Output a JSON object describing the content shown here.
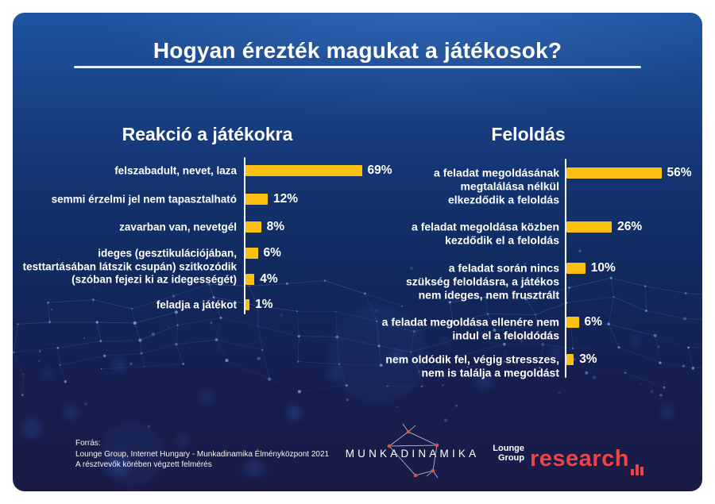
{
  "title": "Hogyan érezték magukat a játékosok?",
  "colors": {
    "background_top": "#1F54A0",
    "background_bottom": "#1A1B45",
    "bar": "#FCC013",
    "text": "#FFFFFF",
    "accent_red": "#EF4348"
  },
  "chart_data": [
    {
      "type": "bar",
      "orientation": "horizontal",
      "title": "Reakció a játékokra",
      "unit": "percent",
      "xlim": [
        0,
        100
      ],
      "grid": false,
      "legend": false,
      "categories": [
        "felszabadult, nevet, laza",
        "semmi érzelmi jel nem tapasztalható",
        "zavarban van, nevetgél",
        "ideges (gesztikulációjában,\ntesttartásában látszik csupán) szitkozódik",
        "(szóban fejezi ki az idegességét)",
        "feladja a játékot"
      ],
      "values": [
        69,
        12,
        8,
        6,
        4,
        1
      ],
      "pct_labels": [
        "69%",
        "12%",
        "8%",
        "6%",
        "4%",
        "1%"
      ]
    },
    {
      "type": "bar",
      "orientation": "horizontal",
      "title": "Feloldás",
      "unit": "percent",
      "xlim": [
        0,
        100
      ],
      "grid": false,
      "legend": false,
      "categories": [
        "a feladat megoldásának\nmegtalálása nélkül\nelkezdődik a feloldás",
        "a feladat megoldása közben\nkezdődik el a feloldás",
        "a feladat során nincs\nszükség feloldásra, a játékos\nnem ideges, nem frusztrált",
        "a feladat megoldása ellenére nem\nindul el a feloldódás",
        "nem oldódik fel, végig stresszes,\nnem is találja a megoldást"
      ],
      "values": [
        56,
        26,
        10,
        6,
        3
      ],
      "pct_labels": [
        "56%",
        "26%",
        "10%",
        "6%",
        "3%"
      ]
    }
  ],
  "footer": {
    "source": "Forrás:\nLounge Group, Internet Hungary - Munkadinamika Élményközpont 2021\nA résztvevők körében végzett felmérés"
  },
  "logos": {
    "munkadinamika": "MUNKADINAMIKA",
    "lounge_line1": "Lounge",
    "lounge_line2": "Group",
    "research": "research"
  }
}
